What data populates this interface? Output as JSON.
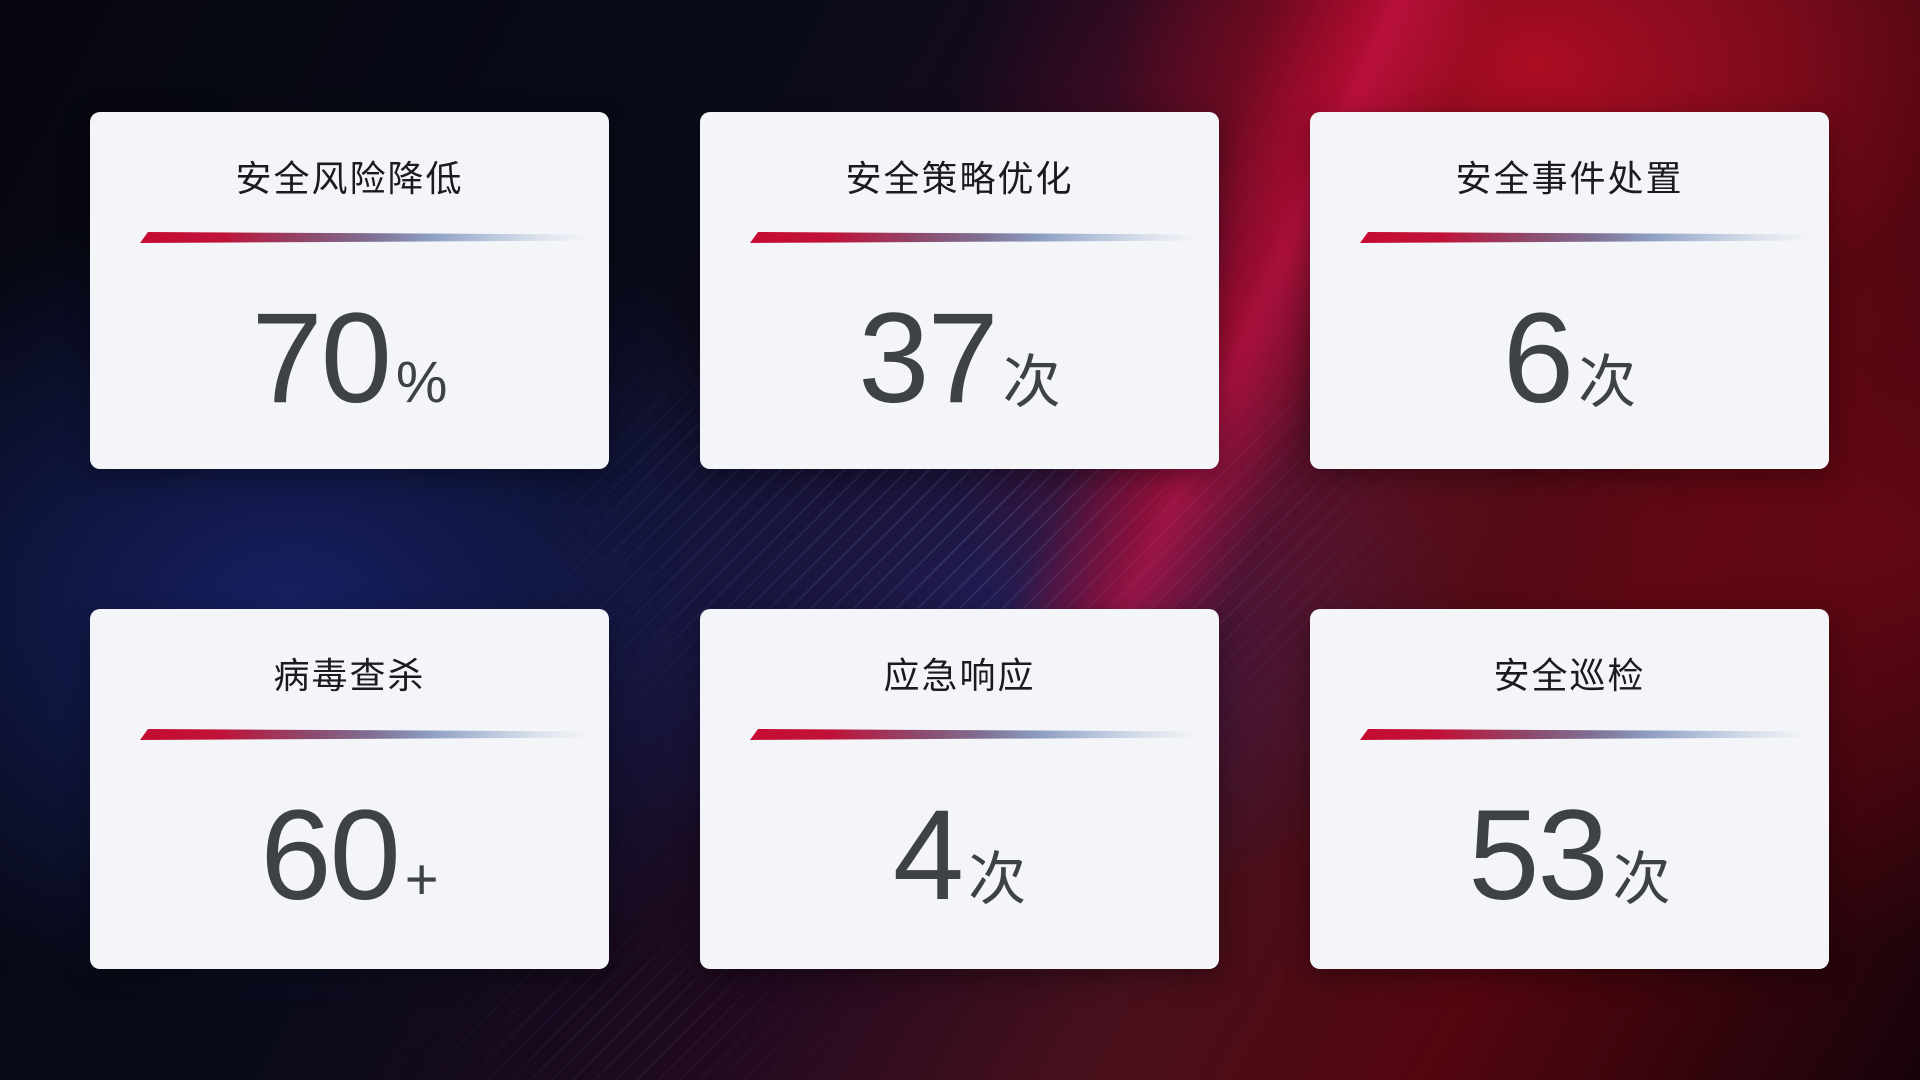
{
  "theme": {
    "card_bg": "#f4f5f9",
    "title_color": "#1b1b1d",
    "value_color": "#3e4146",
    "divider_start": "#c60c32",
    "divider_mid": "#7f7094",
    "divider_end": "#d9e0eb",
    "bg_navy": "#17216b",
    "bg_red": "#a00c20"
  },
  "cards": [
    {
      "title": "安全风险降低",
      "value": "70",
      "suffix": "%"
    },
    {
      "title": "安全策略优化",
      "value": "37",
      "suffix": "次"
    },
    {
      "title": "安全事件处置",
      "value": "6",
      "suffix": "次"
    },
    {
      "title": "病毒查杀",
      "value": "60",
      "suffix": "+"
    },
    {
      "title": "应急响应",
      "value": "4",
      "suffix": "次"
    },
    {
      "title": "安全巡检",
      "value": "53",
      "suffix": "次"
    }
  ]
}
